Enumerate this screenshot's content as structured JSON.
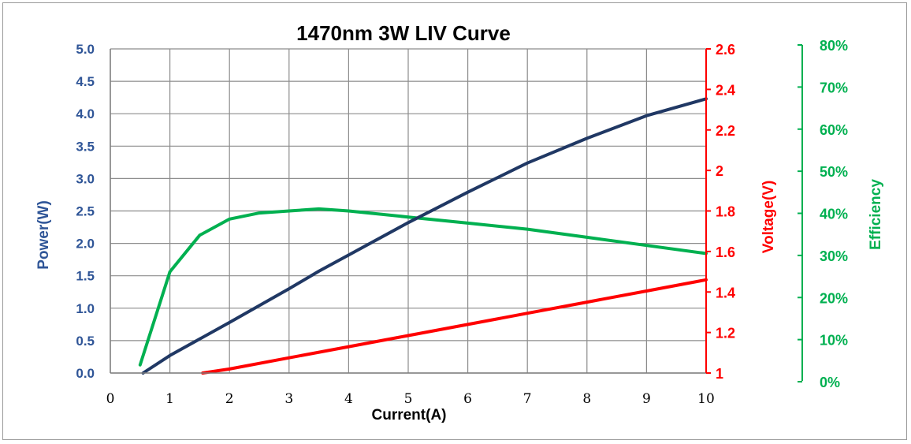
{
  "chart_data": {
    "type": "line",
    "title": "1470nm 3W LIV Curve",
    "xlabel": "Current(A)",
    "xlim": [
      0,
      10
    ],
    "x_ticks": [
      "0",
      "1",
      "2",
      "3",
      "4",
      "5",
      "6",
      "7",
      "8",
      "9",
      "10"
    ],
    "grid": true,
    "legend": "none",
    "axes": {
      "power": {
        "label": "Power(W)",
        "side": "left",
        "range": [
          0,
          5
        ],
        "color": "#2f5597",
        "ticks": [
          "0.0",
          "0.5",
          "1.0",
          "1.5",
          "2.0",
          "2.5",
          "3.0",
          "3.5",
          "4.0",
          "4.5",
          "5.0"
        ]
      },
      "voltage": {
        "label": "Voltage(V)",
        "side": "right",
        "range": [
          1,
          2.6
        ],
        "color": "#ff0000",
        "ticks": [
          "1",
          "1.2",
          "1.4",
          "1.6",
          "1.8",
          "2",
          "2.2",
          "2.4",
          "2.6"
        ]
      },
      "efficiency": {
        "label": "Efficiency",
        "side": "right-outer",
        "range": [
          0,
          80
        ],
        "color": "#00b050",
        "ticks": [
          "0%",
          "10%",
          "20%",
          "30%",
          "40%",
          "50%",
          "60%",
          "70%",
          "80%"
        ]
      }
    },
    "series": [
      {
        "axis": "power",
        "color": "#203864",
        "x": [
          0.55,
          1,
          2,
          3,
          3.5,
          4,
          5,
          6,
          7,
          8,
          9,
          10
        ],
        "y": [
          0.0,
          0.27,
          0.78,
          1.3,
          1.57,
          1.82,
          2.32,
          2.79,
          3.24,
          3.62,
          3.97,
          4.23
        ]
      },
      {
        "axis": "voltage",
        "color": "#ff0000",
        "x": [
          1.55,
          2,
          3,
          4,
          5,
          6,
          7,
          8,
          9,
          10
        ],
        "y": [
          1.0,
          1.02,
          1.075,
          1.13,
          1.185,
          1.24,
          1.295,
          1.35,
          1.405,
          1.46
        ]
      },
      {
        "axis": "efficiency",
        "color": "#00b050",
        "x": [
          0.5,
          1,
          1.5,
          2,
          2.5,
          3,
          3.5,
          4,
          5,
          6,
          7,
          8,
          9,
          10
        ],
        "y": [
          2,
          25,
          34,
          38,
          39.5,
          40,
          40.5,
          40,
          38.5,
          37,
          35.5,
          33.5,
          31.5,
          29.5
        ]
      }
    ]
  }
}
